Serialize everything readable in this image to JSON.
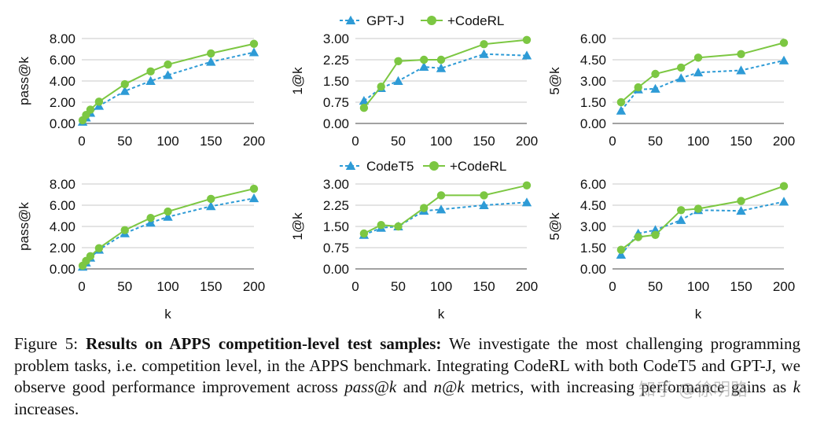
{
  "colors": {
    "gptj": "#2e9bd6",
    "coderl": "#7cc742",
    "grid": "#c8c8c8",
    "axis": "#444444"
  },
  "legends": [
    {
      "base": "GPT-J",
      "rl": "+CodeRL"
    },
    {
      "base": "CodeT5",
      "rl": "+CodeRL"
    }
  ],
  "chart_data": [
    {
      "type": "line",
      "ylabel": "pass@k",
      "xlabel": "",
      "xlim": [
        0,
        200
      ],
      "xticks": [
        0,
        50,
        100,
        150,
        200
      ],
      "yticks": [
        "0.00",
        "2.00",
        "4.00",
        "6.00",
        "8.00"
      ],
      "ylim": [
        0,
        8
      ],
      "series": [
        {
          "name": "GPT-J",
          "x": [
            1,
            5,
            10,
            20,
            50,
            80,
            100,
            150,
            200
          ],
          "values": [
            0.15,
            0.55,
            1.0,
            1.65,
            3.05,
            4.0,
            4.55,
            5.8,
            6.7
          ]
        },
        {
          "name": "+CodeRL",
          "x": [
            1,
            5,
            10,
            20,
            50,
            80,
            100,
            150,
            200
          ],
          "values": [
            0.3,
            0.8,
            1.3,
            2.05,
            3.7,
            4.9,
            5.55,
            6.6,
            7.5
          ]
        }
      ]
    },
    {
      "type": "line",
      "ylabel": "1@k",
      "xlabel": "",
      "xlim": [
        0,
        200
      ],
      "xticks": [
        0,
        50,
        100,
        150,
        200
      ],
      "yticks": [
        "0.00",
        "0.75",
        "1.50",
        "2.25",
        "3.00"
      ],
      "ylim": [
        0,
        3
      ],
      "series": [
        {
          "name": "GPT-J",
          "x": [
            10,
            30,
            50,
            80,
            100,
            150,
            200
          ],
          "values": [
            0.8,
            1.25,
            1.5,
            2.0,
            1.95,
            2.45,
            2.4
          ]
        },
        {
          "name": "+CodeRL",
          "x": [
            10,
            30,
            50,
            80,
            100,
            150,
            200
          ],
          "values": [
            0.55,
            1.3,
            2.2,
            2.25,
            2.25,
            2.8,
            2.95
          ]
        }
      ]
    },
    {
      "type": "line",
      "ylabel": "5@k",
      "xlabel": "",
      "xlim": [
        0,
        200
      ],
      "xticks": [
        0,
        50,
        100,
        150,
        200
      ],
      "yticks": [
        "0.00",
        "1.50",
        "3.00",
        "4.50",
        "6.00"
      ],
      "ylim": [
        0,
        6
      ],
      "series": [
        {
          "name": "GPT-J",
          "x": [
            10,
            30,
            50,
            80,
            100,
            150,
            200
          ],
          "values": [
            0.9,
            2.4,
            2.45,
            3.2,
            3.6,
            3.75,
            4.45
          ]
        },
        {
          "name": "+CodeRL",
          "x": [
            10,
            30,
            50,
            80,
            100,
            150,
            200
          ],
          "values": [
            1.5,
            2.55,
            3.5,
            3.95,
            4.65,
            4.9,
            5.7
          ]
        }
      ]
    },
    {
      "type": "line",
      "ylabel": "pass@k",
      "xlabel": "k",
      "xlim": [
        0,
        200
      ],
      "xticks": [
        0,
        50,
        100,
        150,
        200
      ],
      "yticks": [
        "0.00",
        "2.00",
        "4.00",
        "6.00",
        "8.00"
      ],
      "ylim": [
        0,
        8
      ],
      "series": [
        {
          "name": "CodeT5",
          "x": [
            1,
            5,
            10,
            20,
            50,
            80,
            100,
            150,
            200
          ],
          "values": [
            0.2,
            0.6,
            1.05,
            1.8,
            3.35,
            4.35,
            4.9,
            5.9,
            6.65
          ]
        },
        {
          "name": "+CodeRL",
          "x": [
            1,
            5,
            10,
            20,
            50,
            80,
            100,
            150,
            200
          ],
          "values": [
            0.3,
            0.75,
            1.2,
            1.95,
            3.65,
            4.8,
            5.4,
            6.6,
            7.55
          ]
        }
      ]
    },
    {
      "type": "line",
      "ylabel": "1@k",
      "xlabel": "k",
      "xlim": [
        0,
        200
      ],
      "xticks": [
        0,
        50,
        100,
        150,
        200
      ],
      "yticks": [
        "0.00",
        "0.75",
        "1.50",
        "2.25",
        "3.00"
      ],
      "ylim": [
        0,
        3
      ],
      "series": [
        {
          "name": "CodeT5",
          "x": [
            10,
            30,
            50,
            80,
            100,
            150,
            200
          ],
          "values": [
            1.2,
            1.45,
            1.5,
            2.05,
            2.1,
            2.25,
            2.35
          ]
        },
        {
          "name": "+CodeRL",
          "x": [
            10,
            30,
            50,
            80,
            100,
            150,
            200
          ],
          "values": [
            1.25,
            1.55,
            1.5,
            2.15,
            2.6,
            2.6,
            2.95
          ]
        }
      ]
    },
    {
      "type": "line",
      "ylabel": "5@k",
      "xlabel": "k",
      "xlim": [
        0,
        200
      ],
      "xticks": [
        0,
        50,
        100,
        150,
        200
      ],
      "yticks": [
        "0.00",
        "1.50",
        "3.00",
        "4.50",
        "6.00"
      ],
      "ylim": [
        0,
        6
      ],
      "series": [
        {
          "name": "CodeT5",
          "x": [
            10,
            30,
            50,
            80,
            100,
            150,
            200
          ],
          "values": [
            1.0,
            2.5,
            2.75,
            3.45,
            4.15,
            4.1,
            4.75
          ]
        },
        {
          "name": "+CodeRL",
          "x": [
            10,
            30,
            50,
            80,
            100,
            150,
            200
          ],
          "values": [
            1.35,
            2.25,
            2.4,
            4.15,
            4.25,
            4.8,
            5.85
          ]
        }
      ]
    }
  ],
  "caption": {
    "label": "Figure 5:",
    "title": "Results on APPS competition-level test samples:",
    "body_1": "We investigate the most challenging programming problem tasks, i.e. competition level, in the APPS benchmark. Integrating CodeRL with both CodeT5 and GPT-J, we observe good performance improvement across",
    "pass": "pass@k",
    "and": "and",
    "nk": "n@k",
    "body_2": "metrics, with increasing performance gains as",
    "k": "k",
    "body_3": "increases."
  },
  "watermark": "知乎 @徐明路"
}
